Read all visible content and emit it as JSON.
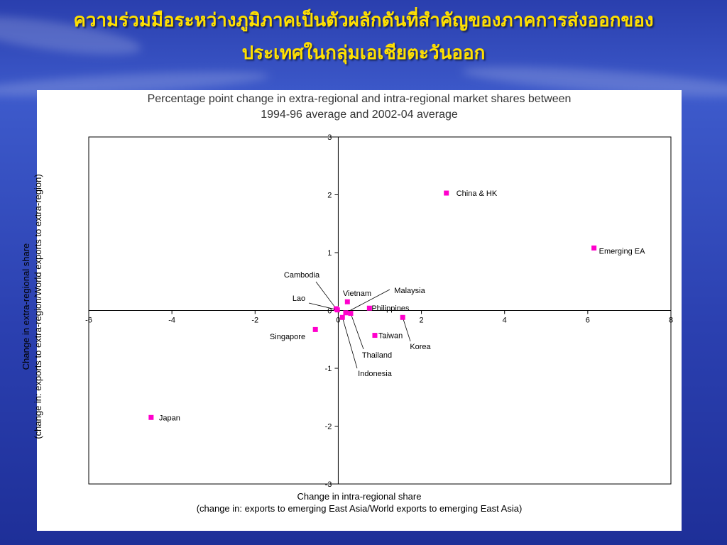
{
  "slide": {
    "title_line1": "ความร่วมมือระหว่างภูมิภาคเป็นตัวผลักดันที่สำคัญของภาคการส่งออกของ",
    "title_line2": "ประเทศในกลุ่มเอเชียตะวันออก"
  },
  "colors": {
    "marker": "#ff00cc",
    "title": "#ffe000",
    "background": "#2b40b0"
  },
  "chart_data": {
    "type": "scatter",
    "title_line1": "Percentage point change in extra-regional and intra-regional market shares between",
    "title_line2": "1994-96 average and 2002-04 average",
    "xlabel_line1": "Change in intra-regional share",
    "xlabel_line2": "(change in: exports to emerging East Asia/World exports to emerging East Asia)",
    "ylabel_line1": "Change in extra-regional share",
    "ylabel_line2": "(change in: exports to extra-region/World exports to extra-region)",
    "xlim": [
      -6,
      8
    ],
    "ylim": [
      -3,
      3
    ],
    "x_ticks": [
      -6,
      -4,
      -2,
      0,
      2,
      4,
      6,
      8
    ],
    "y_ticks": [
      -3,
      -2,
      -1,
      0,
      1,
      2,
      3
    ],
    "grid": false,
    "points": [
      {
        "label": "China & HK",
        "x": 2.6,
        "y": 2.03
      },
      {
        "label": "Emerging EA",
        "x": 6.15,
        "y": 1.08
      },
      {
        "label": "Cambodia",
        "x": -0.05,
        "y": 0.03
      },
      {
        "label": "Lao",
        "x": -0.02,
        "y": 0.01
      },
      {
        "label": "Vietnam",
        "x": 0.22,
        "y": 0.15
      },
      {
        "label": "Malaysia",
        "x": 0.18,
        "y": -0.04
      },
      {
        "label": "Philippines",
        "x": 0.75,
        "y": 0.04
      },
      {
        "label": "Singapore",
        "x": -0.55,
        "y": -0.33
      },
      {
        "label": "Taiwan",
        "x": 0.88,
        "y": -0.43
      },
      {
        "label": "Korea",
        "x": 1.55,
        "y": -0.12
      },
      {
        "label": "Thailand",
        "x": 0.3,
        "y": -0.05
      },
      {
        "label": "Indonesia",
        "x": 0.1,
        "y": -0.12
      },
      {
        "label": "Japan",
        "x": -4.5,
        "y": -1.85
      }
    ]
  }
}
